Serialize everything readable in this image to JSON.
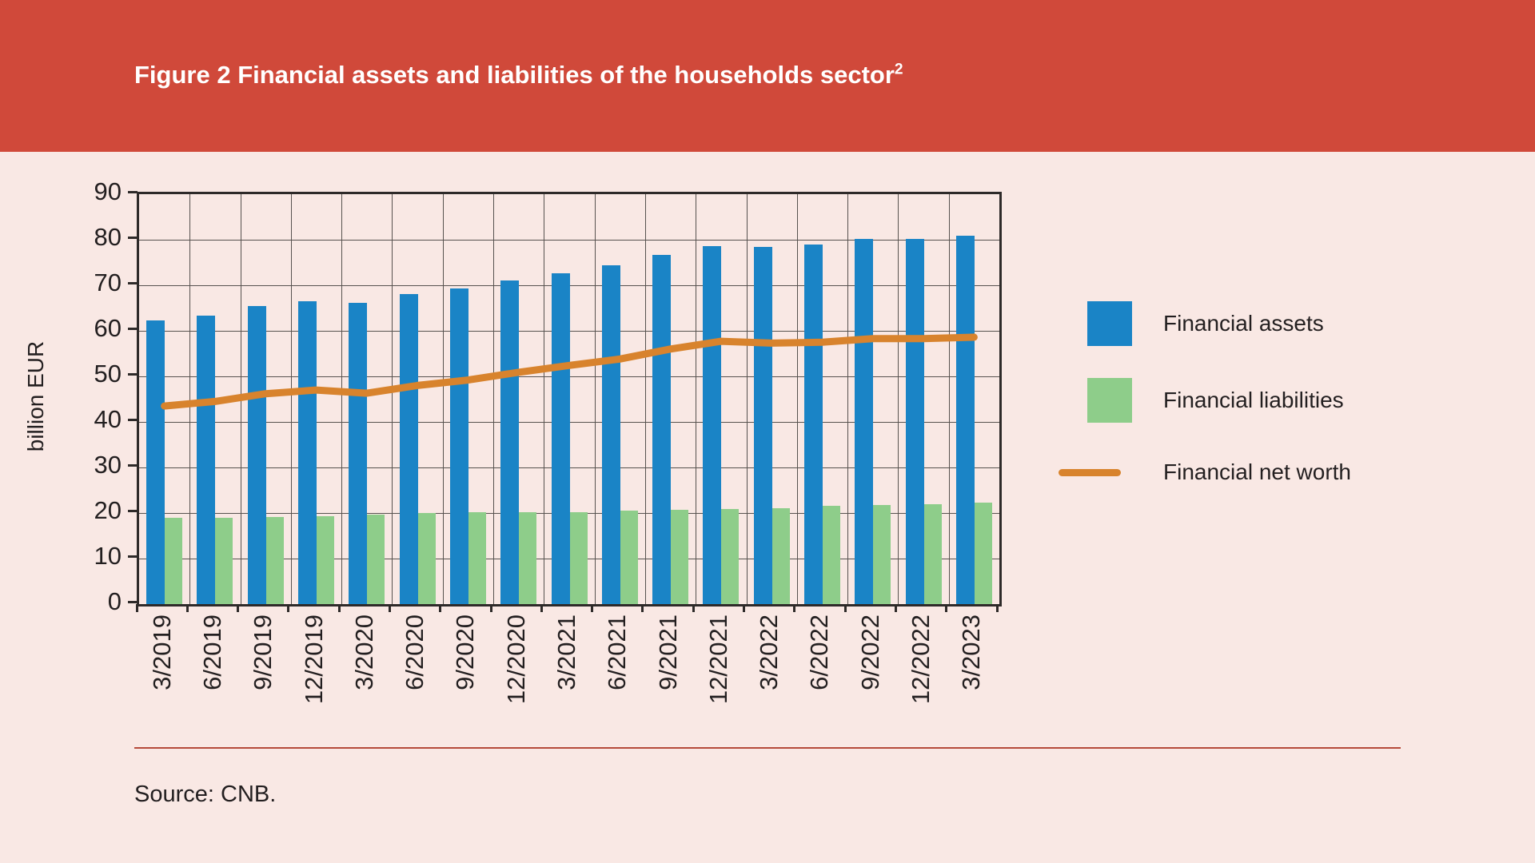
{
  "header": {
    "title": "Figure 2 Financial assets and liabilities of the households sector",
    "title_superscript": "2"
  },
  "y_axis_label": "billion EUR",
  "source_note": "Source: CNB.",
  "legend": {
    "assets_label": "Financial assets",
    "liabilities_label": "Financial liabilities",
    "networth_label": "Financial net worth"
  },
  "colors": {
    "header_background": "#d0493a",
    "page_background": "#f9e8e4",
    "assets_bar": "#1a84c6",
    "liabilities_bar": "#8ecd8a",
    "networth_line": "#d8832d",
    "grid": "#57524f",
    "frame": "#2e2a29",
    "title_text": "#ffffff",
    "body_text": "#231f20"
  },
  "chart_data": {
    "type": "bar",
    "title": "Figure 2 Financial assets and liabilities of the households sector",
    "ylabel": "billion EUR",
    "xlabel": "",
    "ylim": [
      0,
      90
    ],
    "ytick_step": 10,
    "grid": true,
    "legend_position": "right",
    "categories": [
      "3/2019",
      "6/2019",
      "9/2019",
      "12/2019",
      "3/2020",
      "6/2020",
      "9/2020",
      "12/2020",
      "3/2021",
      "6/2021",
      "9/2021",
      "12/2021",
      "3/2022",
      "6/2022",
      "9/2022",
      "12/2022",
      "3/2023"
    ],
    "series": [
      {
        "name": "Financial assets",
        "type": "bar",
        "color": "#1a84c6",
        "values": [
          62.2,
          63.4,
          65.4,
          66.5,
          66.1,
          68.0,
          69.3,
          71.0,
          72.6,
          74.4,
          76.7,
          78.6,
          78.4,
          79.0,
          80.2,
          80.2,
          80.8
        ]
      },
      {
        "name": "Financial liabilities",
        "type": "bar",
        "color": "#8ecd8a",
        "values": [
          19.0,
          19.0,
          19.2,
          19.3,
          19.6,
          20.0,
          20.1,
          20.1,
          20.2,
          20.6,
          20.7,
          20.9,
          21.0,
          21.6,
          21.8,
          21.9,
          22.2
        ]
      },
      {
        "name": "Financial net worth",
        "type": "line",
        "color": "#d8832d",
        "values": [
          43.5,
          44.5,
          46.2,
          47.0,
          46.3,
          48.0,
          49.2,
          50.9,
          52.4,
          53.8,
          56.0,
          57.7,
          57.3,
          57.5,
          58.3,
          58.3,
          58.6
        ]
      }
    ]
  }
}
